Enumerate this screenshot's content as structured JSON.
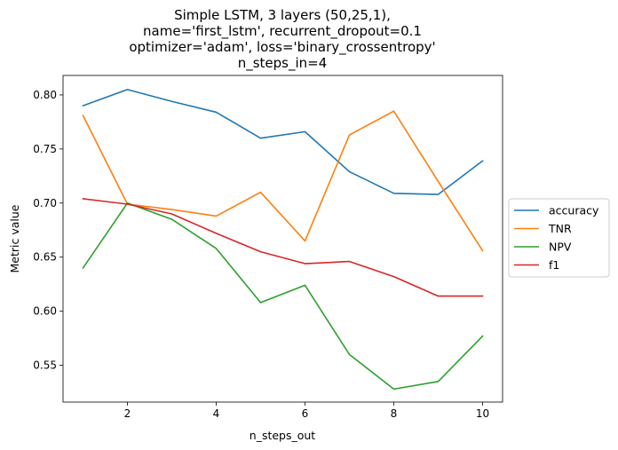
{
  "chart_data": {
    "type": "line",
    "title_lines": [
      "Simple LSTM, 3 layers (50,25,1),",
      "name='first_lstm', recurrent_dropout=0.1",
      "optimizer='adam', loss='binary_crossentropy'",
      "n_steps_in=4"
    ],
    "xlabel": "n_steps_out",
    "ylabel": "Metric value",
    "x": [
      1,
      2,
      3,
      4,
      5,
      6,
      7,
      8,
      9,
      10
    ],
    "xlim": [
      0.55,
      10.45
    ],
    "ylim": [
      0.516,
      0.818
    ],
    "xticks": [
      2,
      4,
      6,
      8,
      10
    ],
    "yticks": [
      0.55,
      0.6,
      0.65,
      0.7,
      0.75,
      0.8
    ],
    "ytick_labels": [
      "0.55",
      "0.60",
      "0.65",
      "0.70",
      "0.75",
      "0.80"
    ],
    "grid": false,
    "legend_position": "center-right, outside plot",
    "series": [
      {
        "name": "accuracy",
        "color": "#1f77b4",
        "values": [
          0.79,
          0.805,
          0.794,
          0.784,
          0.76,
          0.766,
          0.729,
          0.709,
          0.708,
          0.739
        ]
      },
      {
        "name": "TNR",
        "color": "#ff7f0e",
        "values": [
          0.781,
          0.699,
          0.694,
          0.688,
          0.71,
          0.665,
          0.763,
          0.785,
          0.72,
          0.656
        ]
      },
      {
        "name": "NPV",
        "color": "#2ca02c",
        "values": [
          0.64,
          0.7,
          0.685,
          0.658,
          0.608,
          0.624,
          0.56,
          0.528,
          0.535,
          0.577
        ]
      },
      {
        "name": "f1",
        "color": "#d62728",
        "values": [
          0.704,
          0.699,
          0.69,
          0.672,
          0.655,
          0.644,
          0.646,
          0.632,
          0.614,
          0.614
        ]
      }
    ]
  }
}
